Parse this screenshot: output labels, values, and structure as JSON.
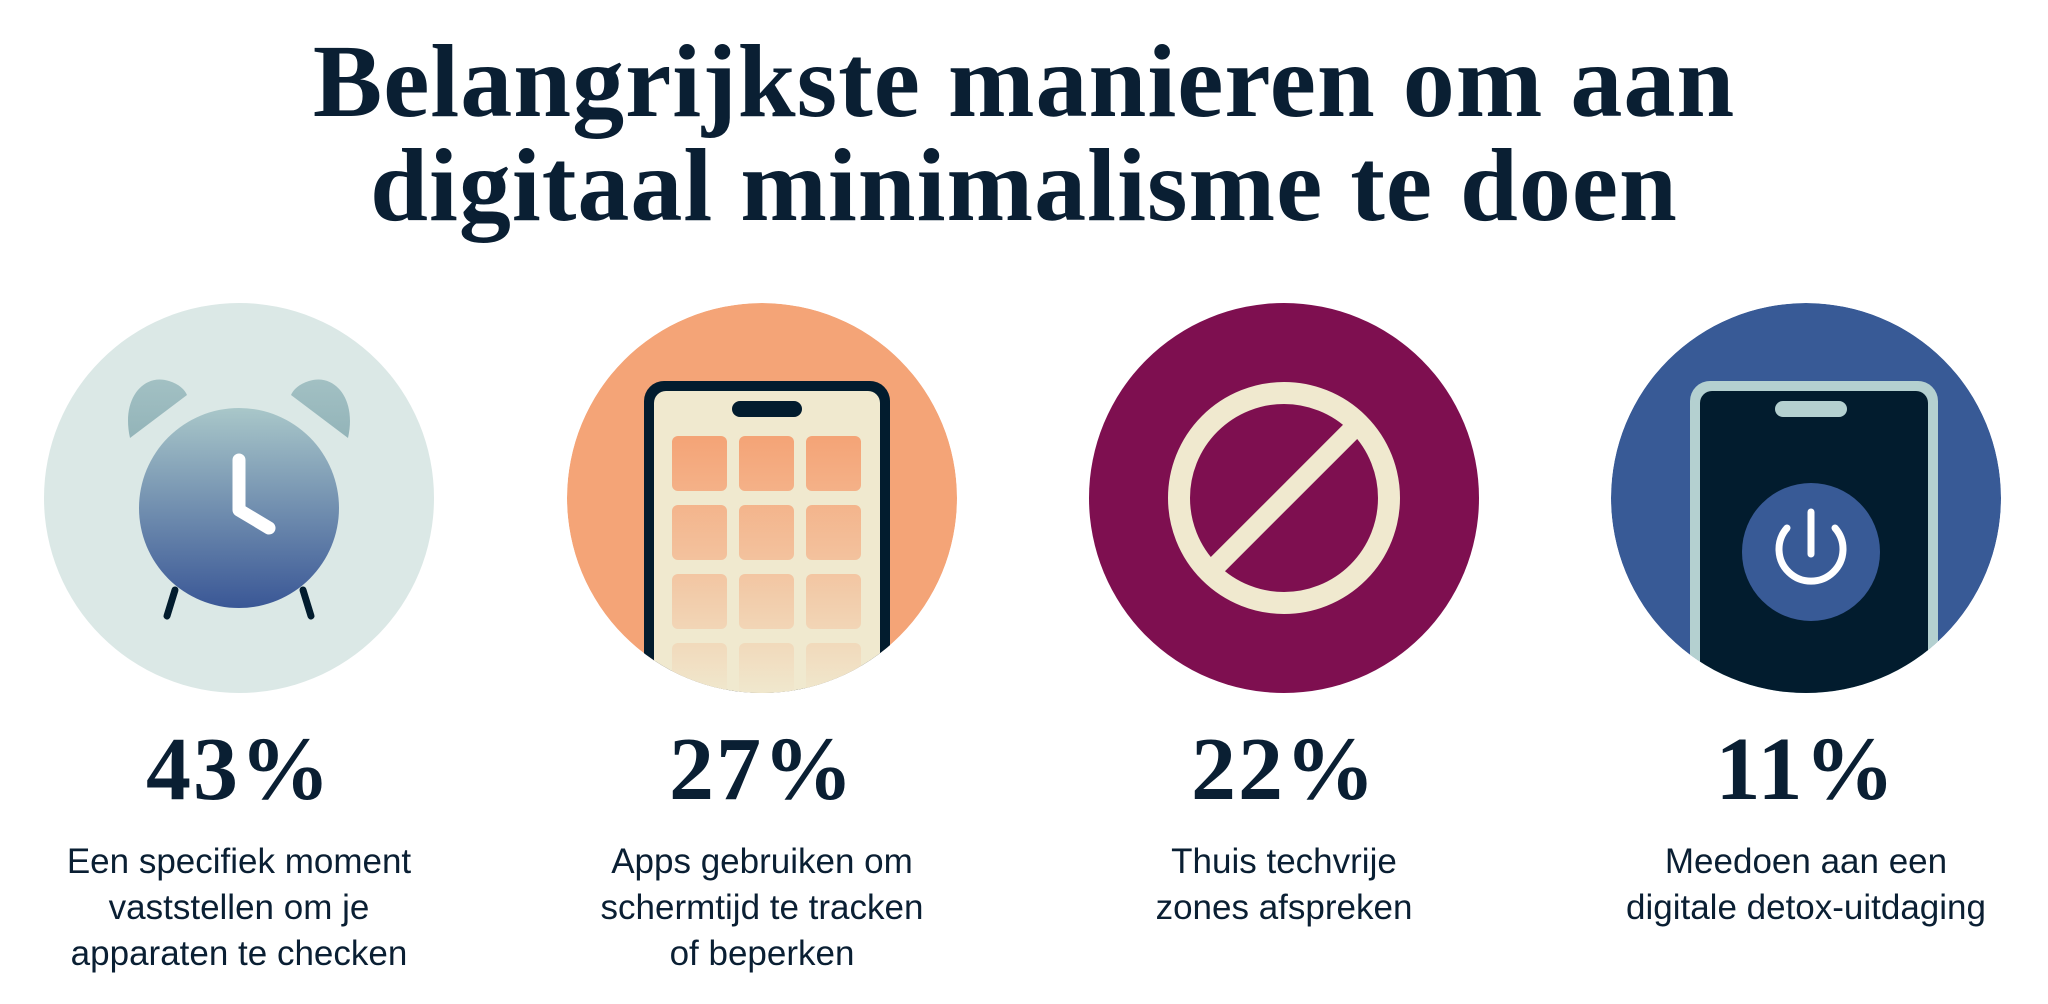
{
  "title": {
    "lines": [
      "Belangrijkste manieren om aan",
      "digitaal minimalisme te doen"
    ]
  },
  "colors": {
    "text": "#0a1f33",
    "clock_bg": "#dbe8e6",
    "phone_apps_bg": "#f4a477",
    "no_tech_bg": "#7e0f50",
    "detox_bg": "#385a96",
    "cream": "#f0e9cf",
    "dark": "#021c2e"
  },
  "items": [
    {
      "icon": "alarm-clock-icon",
      "percent": "43%",
      "value": 43,
      "desc": [
        "Een specifiek moment",
        "vaststellen om je",
        "apparaten te checken"
      ]
    },
    {
      "icon": "smartphone-apps-icon",
      "percent": "27%",
      "value": 27,
      "desc": [
        "Apps gebruiken om",
        "schermtijd te tracken",
        "of beperken"
      ]
    },
    {
      "icon": "prohibited-icon",
      "percent": "22%",
      "value": 22,
      "desc": [
        "Thuis techvrije",
        "zones afspreken"
      ]
    },
    {
      "icon": "phone-power-off-icon",
      "percent": "11%",
      "value": 11,
      "desc": [
        "Meedoen aan een",
        "digitale detox-uitdaging"
      ]
    }
  ]
}
